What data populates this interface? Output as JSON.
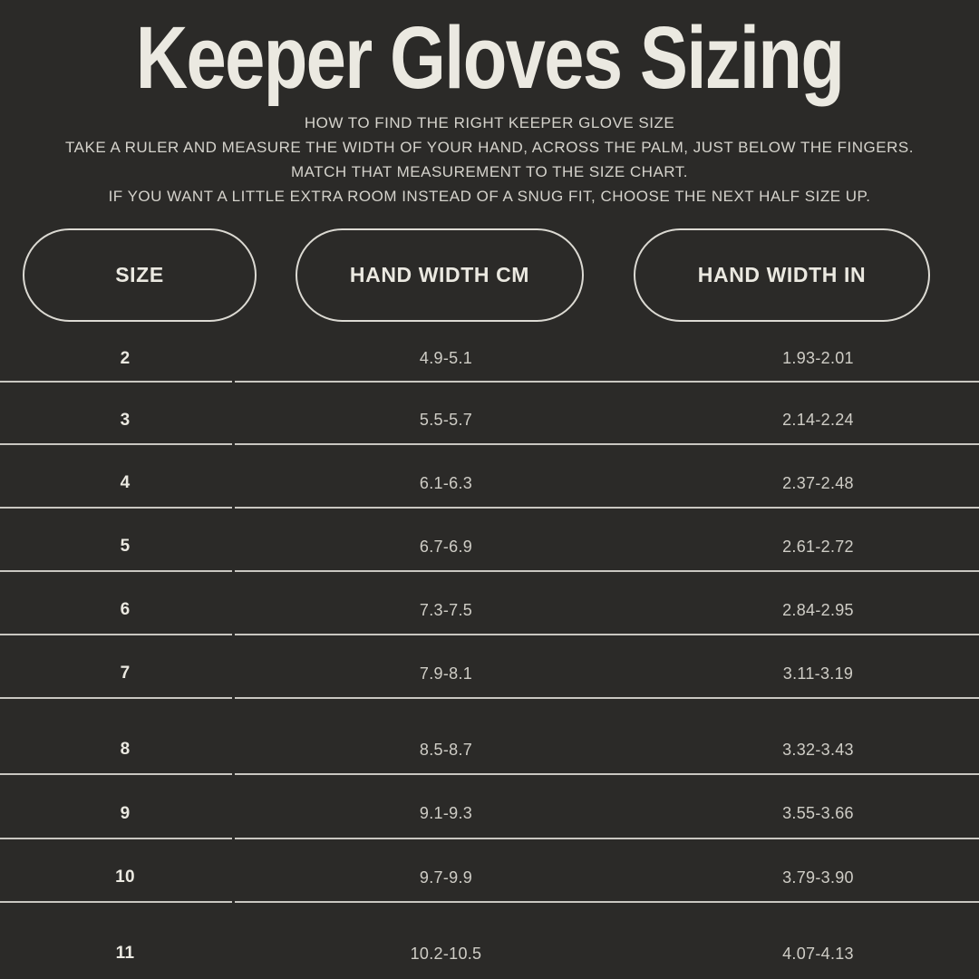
{
  "title": "Keeper Gloves Sizing",
  "subtitle_lines": [
    "HOW TO FIND THE RIGHT KEEPER GLOVE SIZE",
    "TAKE A RULER AND MEASURE THE WIDTH OF YOUR HAND, ACROSS THE PALM, JUST BELOW THE FINGERS.",
    "MATCH THAT MEASUREMENT TO THE SIZE CHART.",
    "IF YOU WANT A LITTLE EXTRA ROOM INSTEAD OF A SNUG FIT, CHOOSE THE NEXT HALF SIZE UP."
  ],
  "chart_data": {
    "type": "table",
    "title": "Keeper Gloves Sizing",
    "columns": [
      "SIZE",
      "HAND WIDTH CM",
      "HAND WIDTH IN"
    ],
    "rows": [
      [
        "2",
        "4.9-5.1",
        "1.93-2.01"
      ],
      [
        "3",
        "5.5-5.7",
        "2.14-2.24"
      ],
      [
        "4",
        "6.1-6.3",
        "2.37-2.48"
      ],
      [
        "5",
        "6.7-6.9",
        "2.61-2.72"
      ],
      [
        "6",
        "7.3-7.5",
        "2.84-2.95"
      ],
      [
        "7",
        "7.9-8.1",
        "3.11-3.19"
      ],
      [
        "8",
        "8.5-8.7",
        "3.32-3.43"
      ],
      [
        "9",
        "9.1-9.3",
        "3.55-3.66"
      ],
      [
        "10",
        "9.7-9.9",
        "3.79-3.90"
      ],
      [
        "11",
        "10.2-10.5",
        "4.07-4.13"
      ]
    ]
  },
  "colors": {
    "background": "#2b2a28",
    "heading_text": "#ebe9e1",
    "body_text": "#d5d3cc",
    "value_text": "#cfcdc6",
    "divider": "#c9c7c1",
    "pill_border": "#dcdad3"
  }
}
